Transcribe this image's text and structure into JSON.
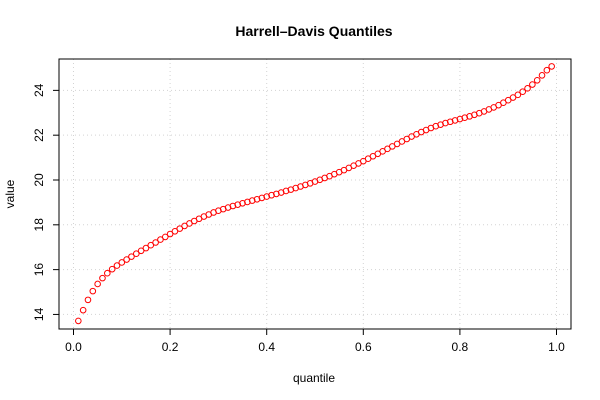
{
  "chart_data": {
    "type": "scatter",
    "title": "Harrell–Davis Quantiles",
    "xlabel": "quantile",
    "ylabel": "value",
    "xlim": [
      -0.03,
      1.03
    ],
    "ylim": [
      13.35,
      25.4
    ],
    "xticks": [
      0,
      0.2,
      0.4,
      0.6,
      0.8,
      1.0
    ],
    "xtick_labels": [
      "0.0",
      "0.2",
      "0.4",
      "0.6",
      "0.8",
      "1.0"
    ],
    "yticks": [
      14,
      16,
      18,
      20,
      22,
      24
    ],
    "ytick_labels": [
      "14",
      "16",
      "18",
      "20",
      "22",
      "24"
    ],
    "grid": true,
    "marker": "open-circle",
    "marker_color": "#ff0000",
    "grid_color": "#d3d3d3",
    "x": [
      0.01,
      0.02,
      0.03,
      0.04,
      0.05,
      0.06,
      0.07,
      0.08,
      0.09,
      0.1,
      0.11,
      0.12,
      0.13,
      0.14,
      0.15,
      0.16,
      0.17,
      0.18,
      0.19,
      0.2,
      0.21,
      0.22,
      0.23,
      0.24,
      0.25,
      0.26,
      0.27,
      0.28,
      0.29,
      0.3,
      0.31,
      0.32,
      0.33,
      0.34,
      0.35,
      0.36,
      0.37,
      0.38,
      0.39,
      0.4,
      0.41,
      0.42,
      0.43,
      0.44,
      0.45,
      0.46,
      0.47,
      0.48,
      0.49,
      0.5,
      0.51,
      0.52,
      0.53,
      0.54,
      0.55,
      0.56,
      0.57,
      0.58,
      0.59,
      0.6,
      0.61,
      0.62,
      0.63,
      0.64,
      0.65,
      0.66,
      0.67,
      0.68,
      0.69,
      0.7,
      0.71,
      0.72,
      0.73,
      0.74,
      0.75,
      0.76,
      0.77,
      0.78,
      0.79,
      0.8,
      0.81,
      0.82,
      0.83,
      0.84,
      0.85,
      0.86,
      0.87,
      0.88,
      0.89,
      0.9,
      0.91,
      0.92,
      0.93,
      0.94,
      0.95,
      0.96,
      0.97,
      0.98,
      0.99
    ],
    "y": [
      13.71,
      14.19,
      14.65,
      15.04,
      15.36,
      15.62,
      15.84,
      16.02,
      16.18,
      16.32,
      16.45,
      16.58,
      16.71,
      16.84,
      16.96,
      17.09,
      17.21,
      17.34,
      17.46,
      17.59,
      17.71,
      17.83,
      17.95,
      18.06,
      18.17,
      18.27,
      18.37,
      18.46,
      18.55,
      18.63,
      18.7,
      18.77,
      18.84,
      18.9,
      18.96,
      19.02,
      19.08,
      19.14,
      19.2,
      19.26,
      19.32,
      19.38,
      19.44,
      19.51,
      19.57,
      19.64,
      19.71,
      19.78,
      19.85,
      19.93,
      20.01,
      20.09,
      20.17,
      20.26,
      20.35,
      20.44,
      20.54,
      20.64,
      20.74,
      20.84,
      20.95,
      21.06,
      21.17,
      21.28,
      21.39,
      21.5,
      21.61,
      21.72,
      21.83,
      21.94,
      22.04,
      22.14,
      22.23,
      22.32,
      22.4,
      22.47,
      22.54,
      22.6,
      22.66,
      22.72,
      22.78,
      22.84,
      22.91,
      22.98,
      23.06,
      23.15,
      23.24,
      23.34,
      23.45,
      23.56,
      23.68,
      23.8,
      23.94,
      24.09,
      24.26,
      24.45,
      24.67,
      24.9,
      25.07
    ]
  }
}
